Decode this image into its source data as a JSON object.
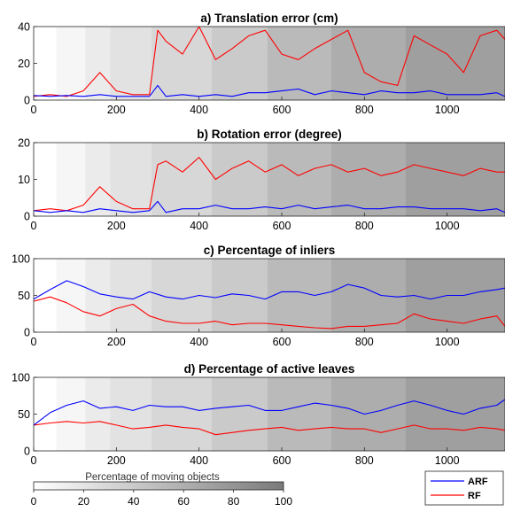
{
  "colors": {
    "arf": "#0000ff",
    "rf": "#ff0000",
    "axis": "#262626",
    "text": "#000000"
  },
  "chart_data": [
    {
      "type": "line",
      "title": "a) Translation error (cm)",
      "x": [
        0,
        40,
        80,
        120,
        160,
        200,
        240,
        280,
        300,
        320,
        360,
        400,
        440,
        480,
        520,
        560,
        600,
        640,
        680,
        720,
        760,
        800,
        840,
        880,
        920,
        960,
        1000,
        1040,
        1080,
        1120,
        1140
      ],
      "series": [
        {
          "name": "ARF",
          "values": [
            2.5,
            2,
            2.5,
            2,
            3,
            2,
            2,
            2,
            8,
            2,
            3,
            2,
            3,
            2,
            4,
            4,
            5,
            6,
            3,
            5,
            4,
            3,
            5,
            4,
            4,
            5,
            3,
            3,
            3,
            4,
            2
          ]
        },
        {
          "name": "RF",
          "values": [
            2,
            3,
            2,
            5,
            15,
            5,
            3,
            3,
            38,
            32,
            25,
            40,
            22,
            28,
            35,
            38,
            25,
            22,
            28,
            33,
            38,
            15,
            10,
            8,
            35,
            30,
            25,
            15,
            35,
            38,
            33
          ]
        }
      ],
      "xlim": [
        0,
        1140
      ],
      "ylim": [
        0,
        40
      ],
      "xticks": [
        "0",
        "200",
        "400",
        "600",
        "800",
        "1000"
      ],
      "yticks": [
        "0",
        "20",
        "40"
      ]
    },
    {
      "type": "line",
      "title": "b) Rotation error (degree)",
      "x": [
        0,
        40,
        80,
        120,
        160,
        200,
        240,
        280,
        300,
        320,
        360,
        400,
        440,
        480,
        520,
        560,
        600,
        640,
        680,
        720,
        760,
        800,
        840,
        880,
        920,
        960,
        1000,
        1040,
        1080,
        1120,
        1140
      ],
      "series": [
        {
          "name": "ARF",
          "values": [
            1.5,
            1,
            1.5,
            1,
            2,
            1.5,
            1,
            1.5,
            4,
            1,
            2,
            2,
            3,
            2,
            2,
            2.5,
            2,
            3,
            2,
            2.5,
            3,
            2,
            2,
            2.5,
            2.5,
            2,
            2,
            2,
            1.5,
            2,
            1
          ]
        },
        {
          "name": "RF",
          "values": [
            1.5,
            2,
            1.5,
            3,
            8,
            4,
            2,
            2,
            14,
            15,
            12,
            16,
            10,
            13,
            15,
            12,
            14,
            11,
            13,
            14,
            12,
            13,
            11,
            12,
            14,
            13,
            12,
            11,
            13,
            12,
            12
          ]
        }
      ],
      "xlim": [
        0,
        1140
      ],
      "ylim": [
        0,
        20
      ],
      "xticks": [
        "0",
        "200",
        "400",
        "600",
        "800",
        "1000"
      ],
      "yticks": [
        "0",
        "10",
        "20"
      ]
    },
    {
      "type": "line",
      "title": "c) Percentage of inliers",
      "x": [
        0,
        40,
        80,
        120,
        160,
        200,
        240,
        280,
        320,
        360,
        400,
        440,
        480,
        520,
        560,
        600,
        640,
        680,
        720,
        760,
        800,
        840,
        880,
        920,
        960,
        1000,
        1040,
        1080,
        1120,
        1140
      ],
      "series": [
        {
          "name": "ARF",
          "values": [
            45,
            58,
            70,
            62,
            52,
            48,
            45,
            55,
            48,
            45,
            50,
            47,
            52,
            50,
            45,
            55,
            55,
            50,
            55,
            65,
            60,
            50,
            48,
            50,
            45,
            50,
            50,
            55,
            58,
            60
          ]
        },
        {
          "name": "RF",
          "values": [
            42,
            48,
            40,
            28,
            22,
            32,
            38,
            22,
            15,
            12,
            12,
            15,
            10,
            12,
            12,
            10,
            8,
            6,
            5,
            8,
            8,
            10,
            12,
            25,
            18,
            15,
            12,
            18,
            22,
            8
          ]
        }
      ],
      "xlim": [
        0,
        1140
      ],
      "ylim": [
        0,
        100
      ],
      "xticks": [
        "0",
        "200",
        "400",
        "600",
        "800",
        "1000"
      ],
      "yticks": [
        "0",
        "50",
        "100"
      ]
    },
    {
      "type": "line",
      "title": "d) Percentage of active leaves",
      "x": [
        0,
        40,
        80,
        120,
        160,
        200,
        240,
        280,
        320,
        360,
        400,
        440,
        480,
        520,
        560,
        600,
        640,
        680,
        720,
        760,
        800,
        840,
        880,
        920,
        960,
        1000,
        1040,
        1080,
        1120,
        1140
      ],
      "series": [
        {
          "name": "ARF",
          "values": [
            35,
            52,
            62,
            68,
            58,
            60,
            55,
            62,
            60,
            60,
            55,
            58,
            60,
            62,
            55,
            55,
            60,
            65,
            62,
            58,
            50,
            55,
            62,
            68,
            62,
            55,
            50,
            58,
            62,
            70
          ]
        },
        {
          "name": "RF",
          "values": [
            35,
            38,
            40,
            38,
            40,
            35,
            30,
            32,
            35,
            32,
            30,
            22,
            25,
            28,
            30,
            32,
            28,
            30,
            32,
            30,
            30,
            25,
            30,
            35,
            30,
            30,
            28,
            32,
            30,
            28
          ]
        }
      ],
      "xlim": [
        0,
        1140
      ],
      "ylim": [
        0,
        100
      ],
      "xticks": [
        "0",
        "200",
        "400",
        "600",
        "800",
        "1000"
      ],
      "yticks": [
        "0",
        "50",
        "100"
      ]
    }
  ],
  "background_bands": {
    "boundaries": [
      0,
      55,
      125,
      185,
      285,
      430,
      565,
      720,
      900,
      1140
    ],
    "levels": [
      0,
      7,
      15,
      22,
      30,
      40,
      52,
      62,
      72
    ]
  },
  "colorbar": {
    "title": "Percentage of moving objects",
    "ticks": [
      "0",
      "20",
      "40",
      "60",
      "80",
      "100"
    ],
    "range": [
      0,
      100
    ],
    "color_low": "#ffffff",
    "color_high": "#7a7a7a"
  },
  "legend": {
    "entries": [
      "ARF",
      "RF"
    ]
  }
}
